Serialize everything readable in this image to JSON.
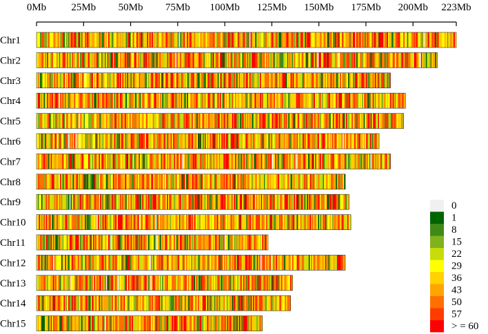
{
  "chart_data": {
    "type": "heatmap",
    "title": "",
    "xlabel": "",
    "ylabel": "",
    "x_ticks": [
      {
        "value": 0,
        "label": "0Mb"
      },
      {
        "value": 25,
        "label": "25Mb"
      },
      {
        "value": 50,
        "label": "50Mb"
      },
      {
        "value": 75,
        "label": "75Mb"
      },
      {
        "value": 100,
        "label": "100Mb"
      },
      {
        "value": 125,
        "label": "125Mb"
      },
      {
        "value": 150,
        "label": "150Mb"
      },
      {
        "value": 175,
        "label": "175Mb"
      },
      {
        "value": 200,
        "label": "200Mb"
      },
      {
        "value": 223,
        "label": "223Mb"
      }
    ],
    "x_range": [
      0,
      223
    ],
    "chromosomes": [
      {
        "name": "Chr1",
        "length": 223,
        "seed": 11
      },
      {
        "name": "Chr2",
        "length": 213,
        "seed": 23
      },
      {
        "name": "Chr3",
        "length": 188,
        "seed": 37
      },
      {
        "name": "Chr4",
        "length": 196,
        "seed": 41
      },
      {
        "name": "Chr5",
        "length": 195,
        "seed": 53
      },
      {
        "name": "Chr6",
        "length": 182,
        "seed": 67
      },
      {
        "name": "Chr7",
        "length": 188,
        "seed": 71
      },
      {
        "name": "Chr8",
        "length": 164,
        "seed": 83
      },
      {
        "name": "Chr9",
        "length": 166,
        "seed": 97
      },
      {
        "name": "Chr10",
        "length": 167,
        "seed": 101
      },
      {
        "name": "Chr11",
        "length": 123,
        "seed": 113
      },
      {
        "name": "Chr12",
        "length": 164,
        "seed": 127
      },
      {
        "name": "Chr13",
        "length": 136,
        "seed": 131
      },
      {
        "name": "Chr14",
        "length": 135,
        "seed": 149
      },
      {
        "name": "Chr15",
        "length": 120,
        "seed": 157
      }
    ],
    "legend": {
      "placement": "bottom-right",
      "items": [
        {
          "label": "0",
          "color": "#f0f0f0"
        },
        {
          "label": "1",
          "color": "#006400"
        },
        {
          "label": "8",
          "color": "#3f8a16"
        },
        {
          "label": "15",
          "color": "#7fb21c"
        },
        {
          "label": "22",
          "color": "#c8dc0a"
        },
        {
          "label": "29",
          "color": "#ffff00"
        },
        {
          "label": "36",
          "color": "#ffd200"
        },
        {
          "label": "43",
          "color": "#ffa500"
        },
        {
          "label": "50",
          "color": "#ff7000"
        },
        {
          "label": "57",
          "color": "#ff3c00"
        },
        {
          "label": "> = 60",
          "color": "#ff0000"
        }
      ]
    },
    "color_weights": [
      1,
      3,
      4,
      6,
      9,
      13,
      13,
      13,
      14,
      12,
      12
    ]
  }
}
